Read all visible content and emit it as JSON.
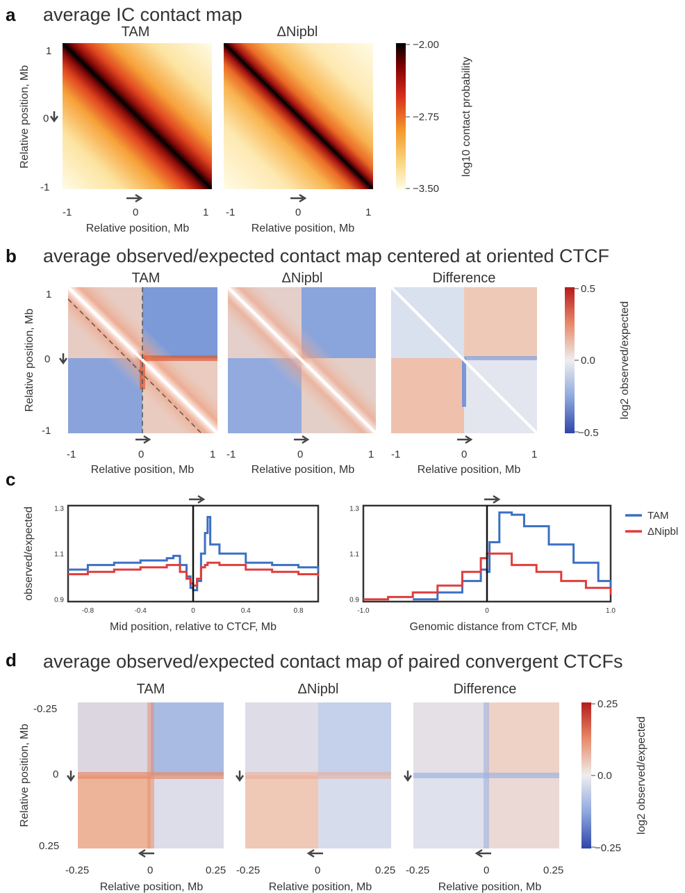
{
  "panels": {
    "a": {
      "letter": "a",
      "title": "average IC contact map",
      "maps": [
        {
          "title": "TAM",
          "ylabel": "Relative position, Mb",
          "xlabel": "Relative position, Mb"
        },
        {
          "title": "ΔNipbl",
          "ylabel": "",
          "xlabel": "Relative position, Mb"
        }
      ],
      "ticks": [
        "1",
        "0",
        "-1"
      ],
      "xticks": [
        "-1",
        "0",
        "1"
      ],
      "colorbar": {
        "label": "log10 contact probability",
        "ticks": [
          "−2.00",
          "−2.75",
          "−3.50"
        ]
      }
    },
    "b": {
      "letter": "b",
      "title": "average observed/expected contact map centered at oriented CTCF",
      "maps": [
        {
          "title": "TAM",
          "ylabel": "Relative position, Mb",
          "xlabel": "Relative position, Mb"
        },
        {
          "title": "ΔNipbl",
          "ylabel": "",
          "xlabel": "Relative position, Mb"
        },
        {
          "title": "Difference",
          "ylabel": "",
          "xlabel": "Relative position, Mb"
        }
      ],
      "ticks": [
        "1",
        "0",
        "-1"
      ],
      "xticks": [
        "-1",
        "0",
        "1"
      ],
      "colorbar": {
        "label": "log2 observed/expected",
        "ticks": [
          "0.5",
          "0.0",
          "−0.5"
        ]
      }
    },
    "c": {
      "letter": "c",
      "legend": [
        "TAM",
        "ΔNipbl"
      ]
    },
    "d": {
      "letter": "d",
      "title": "average observed/expected contact map of paired convergent CTCFs",
      "maps": [
        {
          "title": "TAM",
          "ylabel": "Relative position, Mb",
          "xlabel": "Relative position, Mb"
        },
        {
          "title": "ΔNipbl",
          "ylabel": "",
          "xlabel": "Relative position, Mb"
        },
        {
          "title": "Difference",
          "ylabel": "",
          "xlabel": "Relative position, Mb"
        }
      ],
      "yticks": [
        "-0.25",
        "0",
        "0.25"
      ],
      "xticks": [
        "-0.25",
        "0",
        "0.25"
      ],
      "colorbar": {
        "label": "log2 observed/expected",
        "ticks": [
          "0.25",
          "0.0",
          "−0.25"
        ]
      }
    }
  },
  "chart_data": [
    {
      "type": "line",
      "ylabel": "observed/expected",
      "xlabel": "Mid position, relative to CTCF, Mb",
      "xlim": [
        -0.95,
        0.95
      ],
      "ylim": [
        0.89,
        1.31
      ],
      "yticks": [
        "0.9",
        "1.1",
        "1.3"
      ],
      "xticks": [
        "-0.8",
        "-0.4",
        "0",
        "0.4",
        "0.8"
      ],
      "x": [
        -0.95,
        -0.8,
        -0.6,
        -0.4,
        -0.2,
        -0.15,
        -0.1,
        -0.05,
        -0.02,
        0.0,
        0.03,
        0.06,
        0.09,
        0.11,
        0.13,
        0.2,
        0.4,
        0.6,
        0.8,
        0.95
      ],
      "series": [
        {
          "name": "TAM",
          "color": "#3b6fc4",
          "values": [
            1.03,
            1.05,
            1.06,
            1.07,
            1.08,
            1.09,
            1.05,
            1.0,
            0.95,
            0.94,
            0.98,
            1.1,
            1.19,
            1.26,
            1.14,
            1.1,
            1.06,
            1.05,
            1.04,
            1.02
          ]
        },
        {
          "name": "ΔNipbl",
          "color": "#e03c3c",
          "values": [
            1.01,
            1.02,
            1.03,
            1.04,
            1.05,
            1.05,
            1.02,
            0.99,
            0.97,
            0.96,
            0.99,
            1.04,
            1.05,
            1.06,
            1.06,
            1.05,
            1.03,
            1.02,
            1.01,
            1.0
          ]
        }
      ]
    },
    {
      "type": "line",
      "ylabel": "",
      "xlabel": "Genomic distance from CTCF, Mb",
      "xlim": [
        -1.0,
        1.0
      ],
      "ylim": [
        0.89,
        1.31
      ],
      "yticks": [
        "0.9",
        "1.1",
        "1.3"
      ],
      "xticks": [
        "-1.0",
        "0",
        "1.0"
      ],
      "series": [
        {
          "name": "TAM",
          "color": "#3b6fc4",
          "x": [
            -0.6,
            -0.4,
            -0.2,
            -0.05,
            0.0,
            0.02,
            0.1,
            0.2,
            0.3,
            0.5,
            0.7,
            0.9,
            1.0
          ],
          "values": [
            0.9,
            0.93,
            0.98,
            1.03,
            1.02,
            1.15,
            1.28,
            1.27,
            1.22,
            1.14,
            1.06,
            0.98,
            0.94
          ]
        },
        {
          "name": "ΔNipbl",
          "color": "#e03c3c",
          "x": [
            -1.0,
            -0.8,
            -0.6,
            -0.4,
            -0.2,
            -0.05,
            0.0,
            0.02,
            0.2,
            0.4,
            0.6,
            0.8,
            1.0
          ],
          "values": [
            0.9,
            0.91,
            0.93,
            0.96,
            1.02,
            1.08,
            1.1,
            1.1,
            1.05,
            1.02,
            0.98,
            0.95,
            0.92
          ]
        }
      ]
    }
  ]
}
